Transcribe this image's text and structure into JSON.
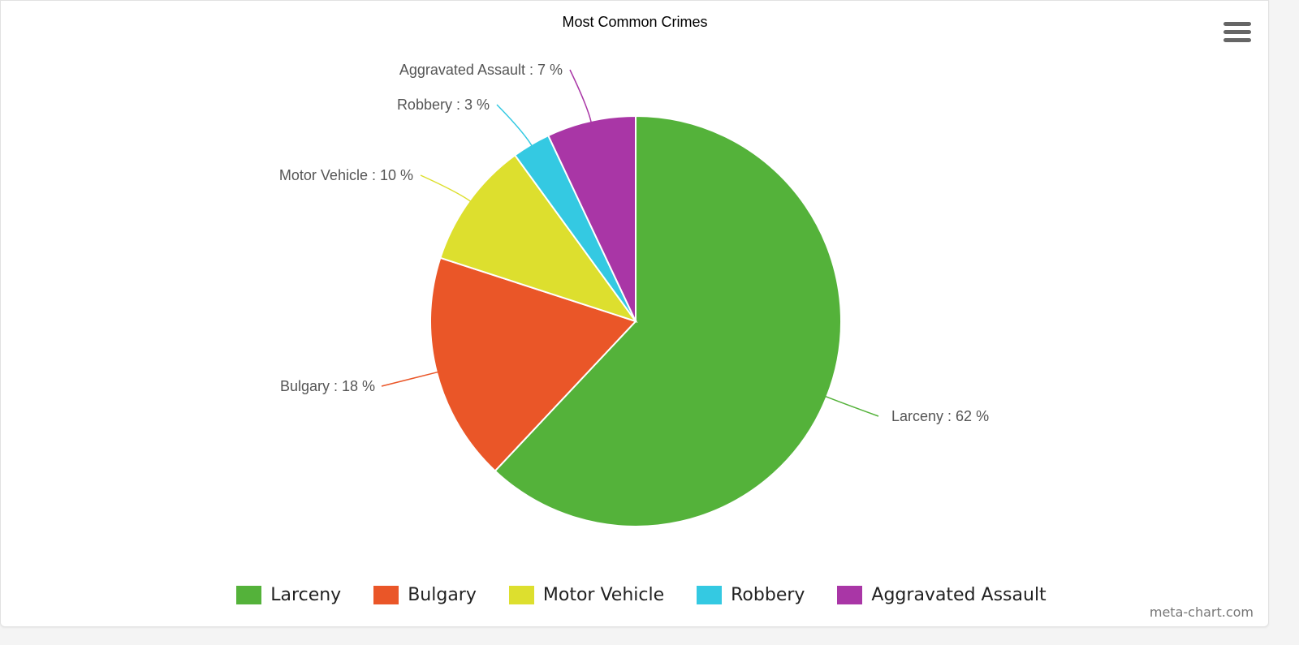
{
  "title": "Most Common Crimes",
  "menu": {
    "icon": "hamburger-menu-icon"
  },
  "credit": "meta-chart.com",
  "colors": {
    "Larceny": "#54b23a",
    "Bulgary": "#ea5628",
    "Motor Vehicle": "#dddf2e",
    "Robbery": "#34c9e2",
    "Aggravated Assault": "#a936a6"
  },
  "legend": [
    {
      "label": "Larceny",
      "color": "#54b23a"
    },
    {
      "label": "Bulgary",
      "color": "#ea5628"
    },
    {
      "label": "Motor Vehicle",
      "color": "#dddf2e"
    },
    {
      "label": "Robbery",
      "color": "#34c9e2"
    },
    {
      "label": "Aggravated Assault",
      "color": "#a936a6"
    }
  ],
  "data_labels": [
    "Larceny : 62 %",
    "Bulgary : 18 %",
    "Motor Vehicle : 10 %",
    "Robbery : 3 %",
    "Aggravated Assault : 7 %"
  ],
  "chart_data": {
    "type": "pie",
    "title": "Most Common Crimes",
    "categories": [
      "Larceny",
      "Bulgary",
      "Motor Vehicle",
      "Robbery",
      "Aggravated Assault"
    ],
    "values": [
      62,
      18,
      10,
      3,
      7
    ],
    "unit": "%",
    "colors": [
      "#54b23a",
      "#ea5628",
      "#dddf2e",
      "#34c9e2",
      "#a936a6"
    ],
    "legend_position": "bottom",
    "start_angle": "12 o'clock, clockwise"
  }
}
